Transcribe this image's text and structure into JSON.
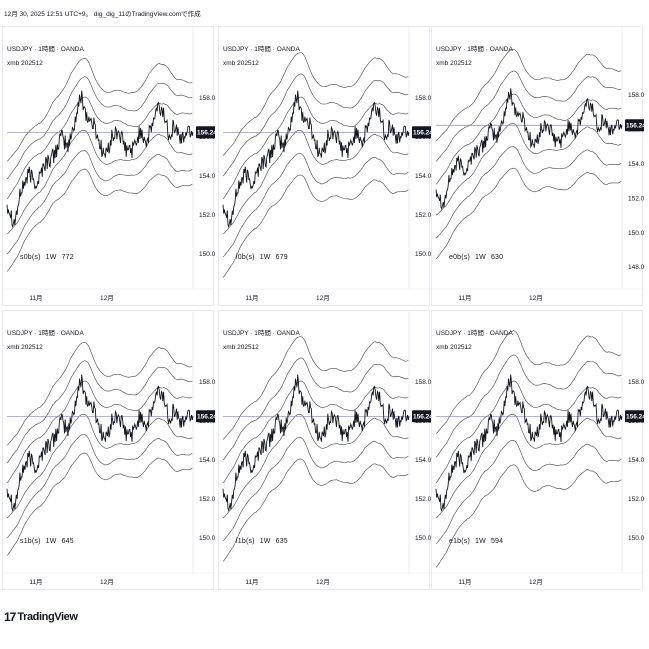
{
  "header": {
    "text": "12月 30, 2025 12:51 UTC+9。 dig_dig_11のTradingView.comで作成"
  },
  "brand": {
    "logo": "17",
    "name": "TradingView"
  },
  "common": {
    "symbol": "USDJPY · 1時間 · OANDA",
    "subtitle": "xmb 202512",
    "current_price_label": "156.248",
    "current_price": 156.248,
    "x_ticks": [
      {
        "label": "11月",
        "pos": 0.12
      },
      {
        "label": "12月",
        "pos": 0.5
      }
    ],
    "colors": {
      "price": "#131722",
      "band": "#454545",
      "hline": "#8b7fd6",
      "tag": "#131722"
    }
  },
  "chart_data": [
    {
      "type": "line",
      "panel": "top-left",
      "legend": [
        "s0b(s)",
        "1W",
        "772"
      ],
      "ylim": [
        148.6,
        159.4
      ],
      "y_ticks": [
        158,
        156,
        154,
        152,
        150
      ],
      "y_tick_labels": [
        "158.000",
        "156.000",
        "154.000",
        "152.000",
        "150.000"
      ],
      "x_range": [
        "2025-10-27",
        "2025-12-30"
      ],
      "series": [
        {
          "role": "price"
        },
        {
          "role": "bands",
          "count": 6
        }
      ]
    },
    {
      "type": "line",
      "panel": "top-middle",
      "legend": [
        "l0b(s)",
        "1W",
        "679"
      ],
      "ylim": [
        148.6,
        159.4
      ],
      "y_ticks": [
        158,
        156,
        154,
        152,
        150
      ],
      "y_tick_labels": [
        "158.000",
        "156.000",
        "154.000",
        "152.000",
        "150.000"
      ],
      "x_range": [
        "2025-10-27",
        "2025-12-30"
      ],
      "series": [
        {
          "role": "price"
        },
        {
          "role": "bands",
          "count": 6
        }
      ]
    },
    {
      "type": "line",
      "panel": "top-right",
      "legend": [
        "e0b(s)",
        "1W",
        "630"
      ],
      "ylim": [
        147.2,
        159.4
      ],
      "y_ticks": [
        158,
        156,
        154,
        152,
        150,
        148
      ],
      "y_tick_labels": [
        "158.000",
        "156.000",
        "154.000",
        "152.000",
        "150.000",
        "148.000"
      ],
      "x_range": [
        "2025-10-27",
        "2025-12-30"
      ],
      "series": [
        {
          "role": "price"
        },
        {
          "role": "bands",
          "count": 6
        }
      ]
    },
    {
      "type": "line",
      "panel": "bottom-left",
      "legend": [
        "s1b(s)",
        "1W",
        "645"
      ],
      "ylim": [
        148.6,
        159.4
      ],
      "y_ticks": [
        158,
        156,
        154,
        152,
        150
      ],
      "y_tick_labels": [
        "158.000",
        "156.000",
        "154.000",
        "152.000",
        "150.000"
      ],
      "x_range": [
        "2025-10-27",
        "2025-12-30"
      ],
      "series": [
        {
          "role": "price"
        },
        {
          "role": "bands",
          "count": 6
        }
      ]
    },
    {
      "type": "line",
      "panel": "bottom-middle",
      "legend": [
        "l1b(s)",
        "1W",
        "635"
      ],
      "ylim": [
        148.6,
        159.4
      ],
      "y_ticks": [
        158,
        156,
        154,
        152,
        150
      ],
      "y_tick_labels": [
        "158.000",
        "156.000",
        "154.000",
        "152.000",
        "150.000"
      ],
      "x_range": [
        "2025-10-27",
        "2025-12-30"
      ],
      "series": [
        {
          "role": "price"
        },
        {
          "role": "bands",
          "count": 6
        }
      ]
    },
    {
      "type": "line",
      "panel": "bottom-right",
      "legend": [
        "e1b(s)",
        "1W",
        "594"
      ],
      "ylim": [
        148.6,
        159.4
      ],
      "y_ticks": [
        158,
        156,
        154,
        152,
        150
      ],
      "y_tick_labels": [
        "158.000",
        "156.000",
        "154.000",
        "152.000",
        "150.000"
      ],
      "x_range": [
        "2025-10-27",
        "2025-12-30"
      ],
      "series": [
        {
          "role": "price"
        },
        {
          "role": "bands",
          "count": 6
        }
      ]
    }
  ]
}
